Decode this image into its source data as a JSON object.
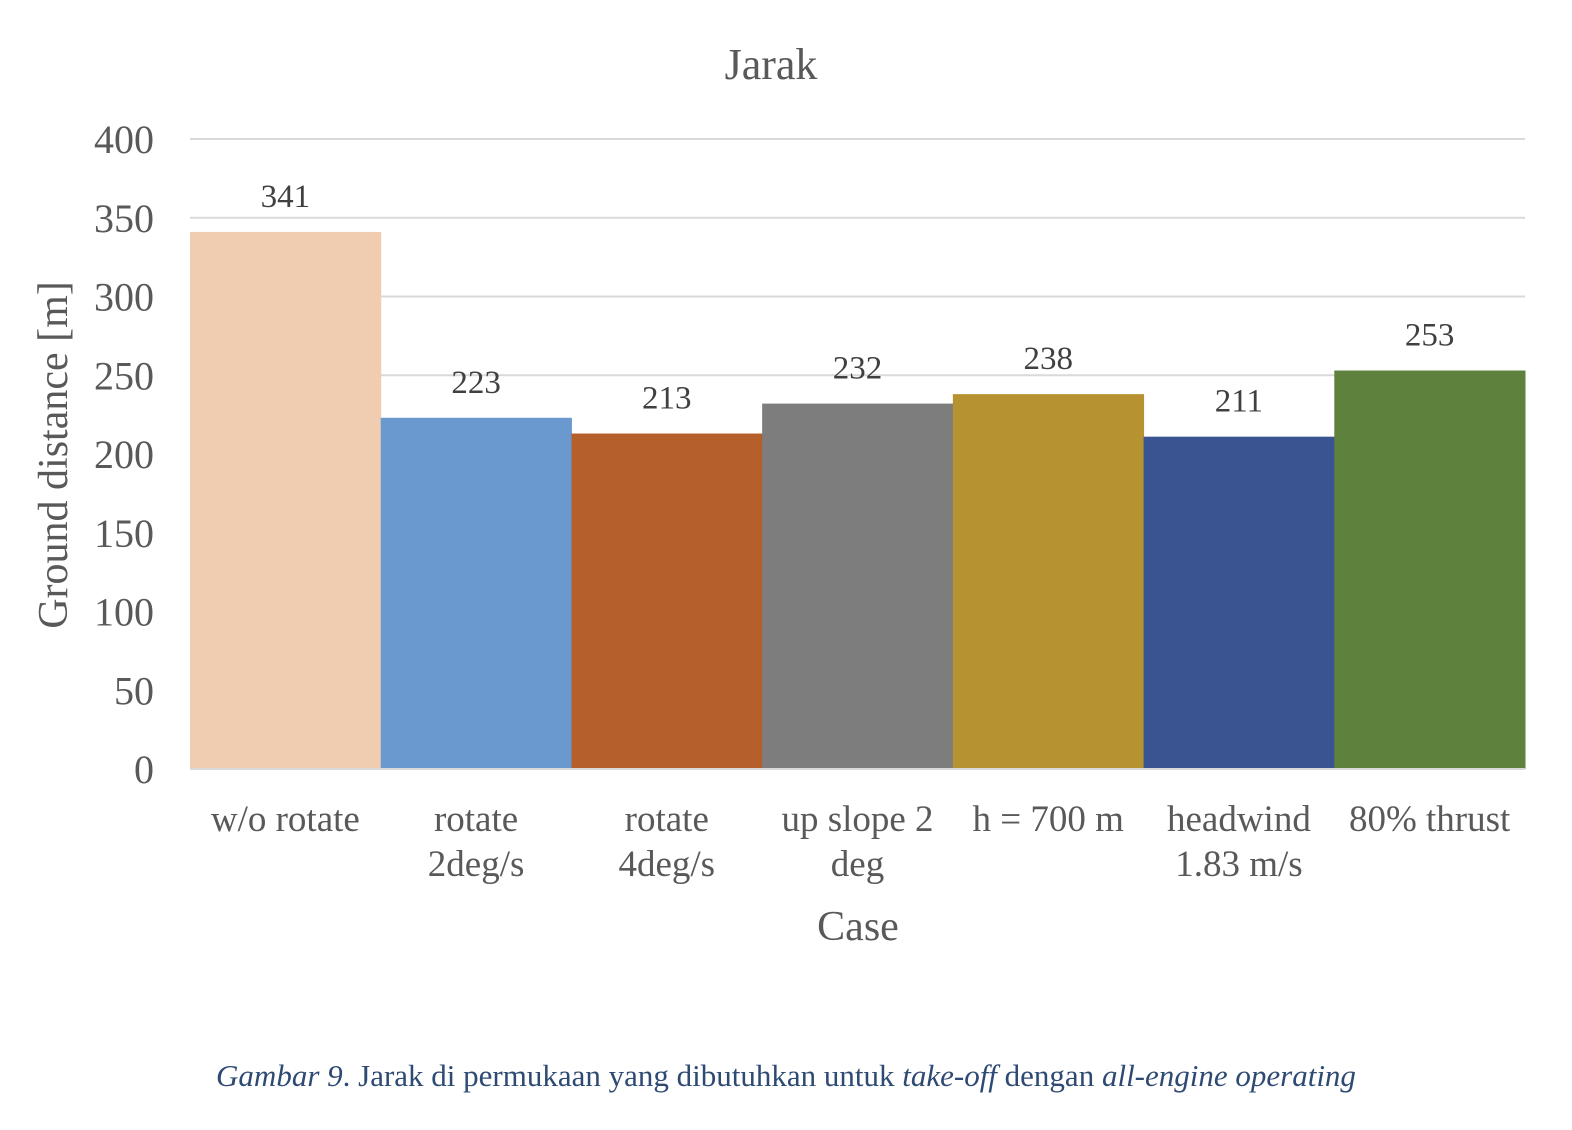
{
  "chart_data": {
    "type": "bar",
    "title": "Jarak",
    "xlabel": "Case",
    "ylabel": "Ground distance [m]",
    "ylim": [
      0,
      400
    ],
    "yticks": [
      "0",
      "50",
      "100",
      "150",
      "200",
      "250",
      "300",
      "350",
      "400"
    ],
    "grid": true,
    "legend": "none",
    "categories": [
      [
        "w/o rotate"
      ],
      [
        "rotate",
        "2deg/s"
      ],
      [
        "rotate",
        "4deg/s"
      ],
      [
        "up slope 2",
        "deg"
      ],
      [
        "h = 700 m"
      ],
      [
        "headwind",
        "1.83 m/s"
      ],
      [
        "80% thrust"
      ]
    ],
    "values": [
      341,
      223,
      213,
      232,
      238,
      211,
      253
    ],
    "data_labels": [
      "341",
      "223",
      "213",
      "232",
      "238",
      "211",
      "253"
    ],
    "colors": [
      "#f0cdb0",
      "#6a99cf",
      "#b5602b",
      "#7d7d7d",
      "#b79231",
      "#395490",
      "#5e823e"
    ],
    "gridline_color": "#d9d9d9",
    "axis_color": "#d9d9d9",
    "text_color": "#595959"
  },
  "caption": {
    "prefix_italic": "Gambar 9",
    "part1": ". Jarak di permukaan yang dibutuhkan untuk ",
    "italic1": "take-off",
    "part2": " dengan ",
    "italic2": "all-engine operating",
    "color": "#2e4a73"
  }
}
